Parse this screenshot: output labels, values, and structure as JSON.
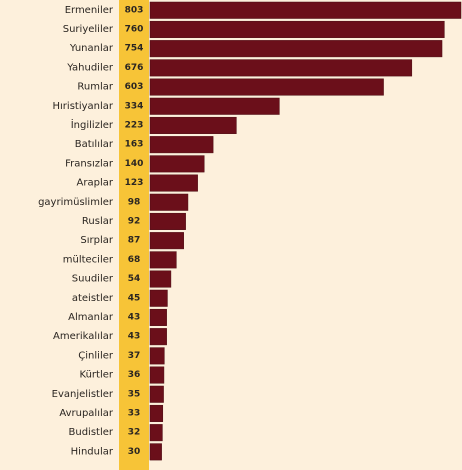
{
  "colors": {
    "background": "#fdf0dc",
    "bar": "#6b0f1a",
    "bar_stroke": "#4a0a12",
    "value_band": "#f7c437",
    "text": "#2b2622"
  },
  "chart_data": {
    "type": "bar",
    "orientation": "horizontal",
    "title": "",
    "xlabel": "",
    "ylabel": "",
    "xlim": [
      0,
      803
    ],
    "grid": false,
    "legend": "none",
    "categories": [
      "Ermeniler",
      "Suriyeliler",
      "Yunanlar",
      "Yahudiler",
      "Rumlar",
      "Hıristiyanlar",
      "İngilizler",
      "Batılılar",
      "Fransızlar",
      "Araplar",
      "gayrimüslimler",
      "Ruslar",
      "Sırplar",
      "mülteciler",
      "Suudiler",
      "ateistler",
      "Almanlar",
      "Amerikalılar",
      "Çinliler",
      "Kürtler",
      "Evanjelistler",
      "Avrupalılar",
      "Budistler",
      "Hindular"
    ],
    "values": [
      803,
      760,
      754,
      676,
      603,
      334,
      223,
      163,
      140,
      123,
      98,
      92,
      87,
      68,
      54,
      45,
      43,
      43,
      37,
      36,
      35,
      33,
      32,
      30
    ]
  }
}
